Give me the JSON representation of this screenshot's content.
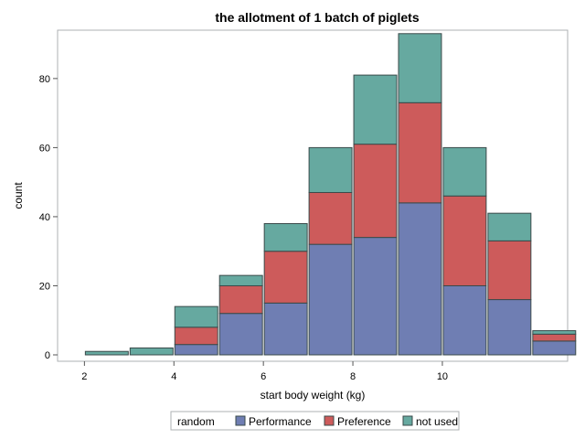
{
  "chart_data": {
    "type": "bar",
    "stacked": true,
    "title": "the allotment of 1 batch of piglets",
    "xlabel": "start body weight (kg)",
    "ylabel": "count",
    "x": [
      2.5,
      3.5,
      4.5,
      5.5,
      6.5,
      7.5,
      8.5,
      9.5,
      10.5,
      11.5,
      12.5
    ],
    "xlim": [
      1.4,
      12.8
    ],
    "ylim": [
      0,
      94
    ],
    "xticks": [
      2,
      4,
      6,
      8,
      10
    ],
    "yticks": [
      0,
      20,
      40,
      60,
      80
    ],
    "bin_width": 1,
    "series": [
      {
        "name": "Performance",
        "color": "#6f7eb3",
        "values": [
          0,
          0,
          3,
          12,
          15,
          32,
          34,
          44,
          20,
          16,
          4
        ]
      },
      {
        "name": "Preference",
        "color": "#cd5b5b",
        "values": [
          0,
          0,
          5,
          8,
          15,
          15,
          27,
          29,
          26,
          17,
          2
        ]
      },
      {
        "name": "not used",
        "color": "#66a9a0",
        "values": [
          1,
          2,
          6,
          3,
          8,
          13,
          20,
          20,
          14,
          8,
          1
        ]
      }
    ],
    "legend": {
      "title": "random",
      "placement": "bottom"
    },
    "grid": false
  }
}
